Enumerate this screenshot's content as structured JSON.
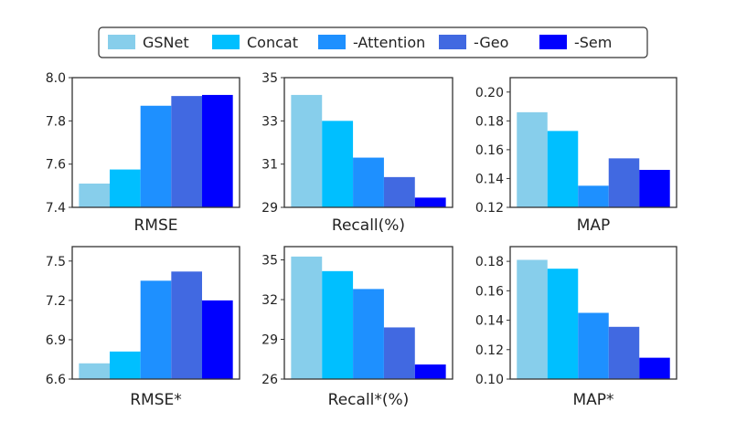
{
  "legend": {
    "placement": "top-center",
    "items": [
      {
        "label": "GSNet",
        "color": "#87CEEB"
      },
      {
        "label": "Concat",
        "color": "#00BFFF"
      },
      {
        "label": "-Attention",
        "color": "#1E90FF"
      },
      {
        "label": "-Geo",
        "color": "#4169E1"
      },
      {
        "label": "-Sem",
        "color": "#0000FF"
      }
    ]
  },
  "chart_data": [
    {
      "type": "bar",
      "xlabel": "RMSE",
      "ylim": [
        7.4,
        8.0
      ],
      "yticks": [
        "7.4",
        "7.6",
        "7.8",
        "8.0"
      ],
      "categories": [
        "GSNet",
        "Concat",
        "-Attention",
        "-Geo",
        "-Sem"
      ],
      "values": [
        7.51,
        7.575,
        7.87,
        7.915,
        7.92
      ]
    },
    {
      "type": "bar",
      "xlabel": "Recall(%)",
      "ylim": [
        29,
        35
      ],
      "yticks": [
        "29",
        "31",
        "33",
        "35"
      ],
      "categories": [
        "GSNet",
        "Concat",
        "-Attention",
        "-Geo",
        "-Sem"
      ],
      "values": [
        34.2,
        33.0,
        31.3,
        30.4,
        29.45
      ]
    },
    {
      "type": "bar",
      "xlabel": "MAP",
      "ylim": [
        0.12,
        0.21
      ],
      "yticks": [
        "0.12",
        "0.14",
        "0.16",
        "0.18",
        "0.20"
      ],
      "categories": [
        "GSNet",
        "Concat",
        "-Attention",
        "-Geo",
        "-Sem"
      ],
      "values": [
        0.186,
        0.173,
        0.135,
        0.154,
        0.146
      ]
    },
    {
      "type": "bar",
      "xlabel": "RMSE*",
      "ylim": [
        6.6,
        7.61
      ],
      "yticks": [
        "6.6",
        "6.9",
        "7.2",
        "7.5"
      ],
      "categories": [
        "GSNet",
        "Concat",
        "-Attention",
        "-Geo",
        "-Sem"
      ],
      "values": [
        6.72,
        6.81,
        7.35,
        7.42,
        7.2
      ]
    },
    {
      "type": "bar",
      "xlabel": "Recall*(%)",
      "ylim": [
        26,
        36
      ],
      "yticks": [
        "26",
        "29",
        "32",
        "35"
      ],
      "categories": [
        "GSNet",
        "Concat",
        "-Attention",
        "-Geo",
        "-Sem"
      ],
      "values": [
        35.25,
        34.15,
        32.8,
        29.9,
        27.1
      ]
    },
    {
      "type": "bar",
      "xlabel": "MAP*",
      "ylim": [
        0.1,
        0.19
      ],
      "yticks": [
        "0.10",
        "0.12",
        "0.14",
        "0.16",
        "0.18"
      ],
      "categories": [
        "GSNet",
        "Concat",
        "-Attention",
        "-Geo",
        "-Sem"
      ],
      "values": [
        0.181,
        0.175,
        0.145,
        0.1355,
        0.1145
      ]
    }
  ]
}
